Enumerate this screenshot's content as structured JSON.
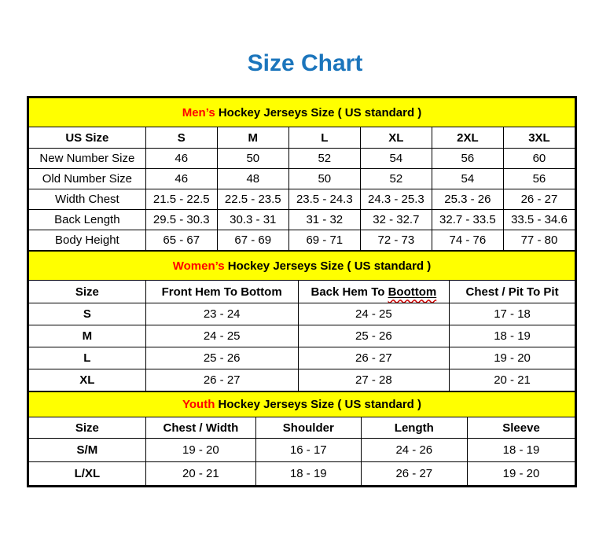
{
  "page": {
    "title": "Size Chart",
    "background": "#ffffff"
  },
  "colors": {
    "title_blue": "#1b75bc",
    "section_header_bg": "#ffff00",
    "accent_red": "#ff0000",
    "squiggle_red": "#cc0000",
    "border_black": "#000000",
    "text_black": "#000000"
  },
  "sections": [
    {
      "id": "mens",
      "header_accent": "Men’s",
      "header_rest": "Hockey Jerseys Size ( US standard )",
      "columns": [
        "US Size",
        "S",
        "M",
        "L",
        "XL",
        "2XL",
        "3XL"
      ],
      "rows": [
        {
          "label": "New Number Size",
          "values": [
            "46",
            "50",
            "52",
            "54",
            "56",
            "60"
          ]
        },
        {
          "label": "Old Number Size",
          "values": [
            "46",
            "48",
            "50",
            "52",
            "54",
            "56"
          ]
        },
        {
          "label": "Width Chest",
          "values": [
            "21.5 - 22.5",
            "22.5 - 23.5",
            "23.5 - 24.3",
            "24.3 - 25.3",
            "25.3 - 26",
            "26 - 27"
          ]
        },
        {
          "label": "Back Length",
          "values": [
            "29.5 - 30.3",
            "30.3 - 31",
            "31 - 32",
            "32 - 32.7",
            "32.7 - 33.5",
            "33.5 - 34.6"
          ]
        },
        {
          "label": "Body Height",
          "values": [
            "65 - 67",
            "67 - 69",
            "69 - 71",
            "72 - 73",
            "74 - 76",
            "77 - 80"
          ]
        }
      ]
    },
    {
      "id": "womens",
      "header_accent": "Women’s",
      "header_rest": "Hockey Jerseys Size ( US standard )",
      "columns": [
        "Size",
        "Front Hem To Bottom",
        "Back Hem To Boottom",
        "Chest / Pit To Pit"
      ],
      "squiggle": {
        "column_index": 2,
        "word": "Boottom"
      },
      "rows": [
        {
          "label": "S",
          "values": [
            "23 - 24",
            "24 - 25",
            "17 - 18"
          ]
        },
        {
          "label": "M",
          "values": [
            "24 - 25",
            "25 - 26",
            "18 - 19"
          ]
        },
        {
          "label": "L",
          "values": [
            "25 - 26",
            "26 - 27",
            "19 - 20"
          ]
        },
        {
          "label": "XL",
          "values": [
            "26 - 27",
            "27 - 28",
            "20 - 21"
          ]
        }
      ]
    },
    {
      "id": "youth",
      "header_accent": "Youth",
      "header_rest": "Hockey Jerseys Size ( US standard )",
      "columns": [
        "Size",
        "Chest / Width",
        "Shoulder",
        "Length",
        "Sleeve"
      ],
      "rows": [
        {
          "label": "S/M",
          "values": [
            "19 - 20",
            "16 - 17",
            "24 - 26",
            "18 - 19"
          ]
        },
        {
          "label": "L/XL",
          "values": [
            "20 - 21",
            "18 - 19",
            "26 - 27",
            "19 - 20"
          ]
        }
      ]
    }
  ]
}
